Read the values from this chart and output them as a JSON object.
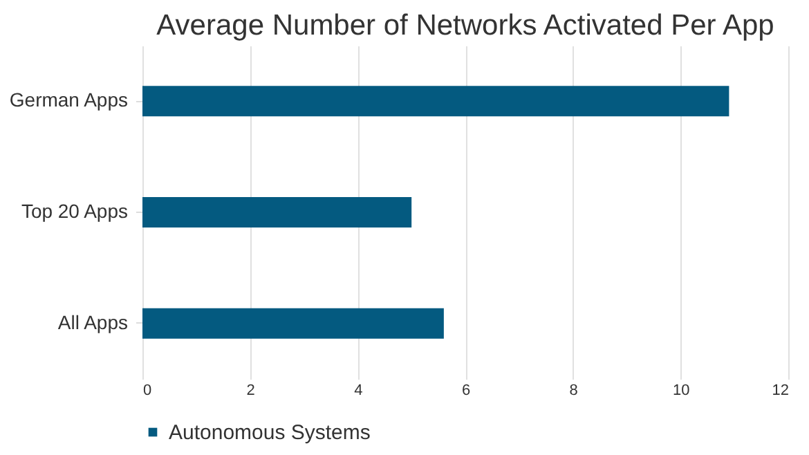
{
  "chart_data": {
    "type": "bar",
    "orientation": "horizontal",
    "title": "Average Number of Networks Activated Per App",
    "categories": [
      "German Apps",
      "Top 20 Apps",
      "All Apps"
    ],
    "series": [
      {
        "name": "Autonomous Systems",
        "color": "#045a80",
        "values": [
          10.9,
          5.0,
          5.6
        ]
      }
    ],
    "xlim": [
      0,
      12
    ],
    "xticks": [
      0,
      2,
      4,
      6,
      8,
      10,
      12
    ],
    "grid": "x",
    "legend": "bottom",
    "marker": "square"
  }
}
